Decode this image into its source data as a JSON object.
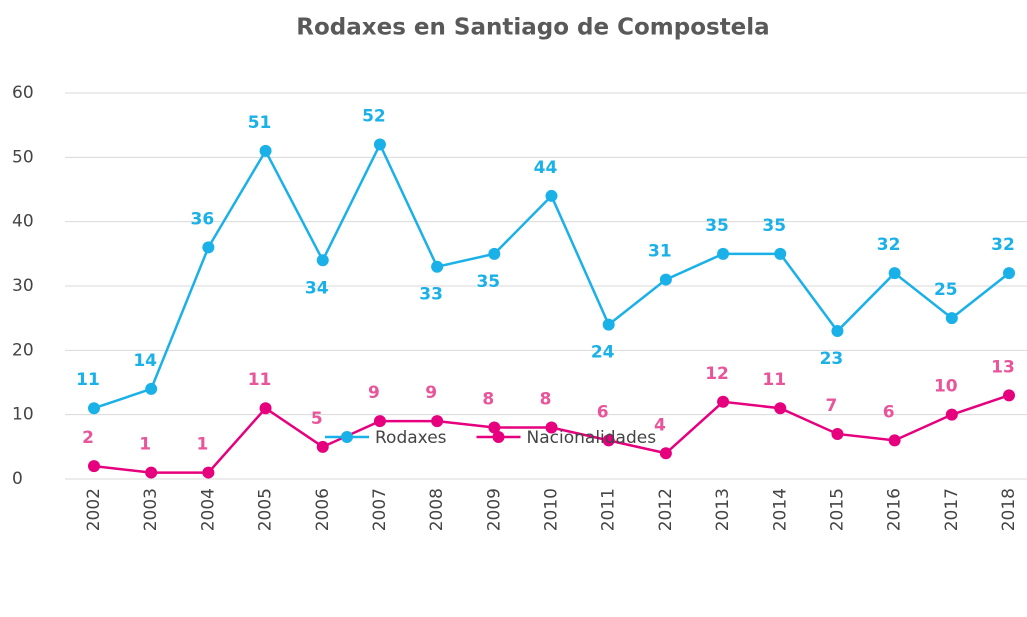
{
  "chart_data": {
    "type": "line",
    "title": "Rodaxes en Santiago de Compostela",
    "categories": [
      "2002",
      "2003",
      "2004",
      "2005",
      "2006",
      "2007",
      "2008",
      "2009",
      "2010",
      "2011",
      "2012",
      "2013",
      "2014",
      "2015",
      "2016",
      "2017",
      "2018"
    ],
    "series": [
      {
        "name": "Rodaxes",
        "color": "#1ab0e8",
        "values": [
          11,
          14,
          36,
          51,
          34,
          52,
          33,
          35,
          44,
          24,
          31,
          35,
          35,
          23,
          32,
          25,
          32
        ]
      },
      {
        "name": "Nacionalidades",
        "color": "#e6007e",
        "values": [
          2,
          1,
          1,
          11,
          5,
          9,
          9,
          8,
          8,
          6,
          4,
          12,
          11,
          7,
          6,
          10,
          13
        ]
      }
    ],
    "ylim": [
      0,
      60
    ],
    "yticks": [
      0,
      10,
      20,
      30,
      40,
      50,
      60
    ],
    "grid": true,
    "legend": "bottom"
  }
}
